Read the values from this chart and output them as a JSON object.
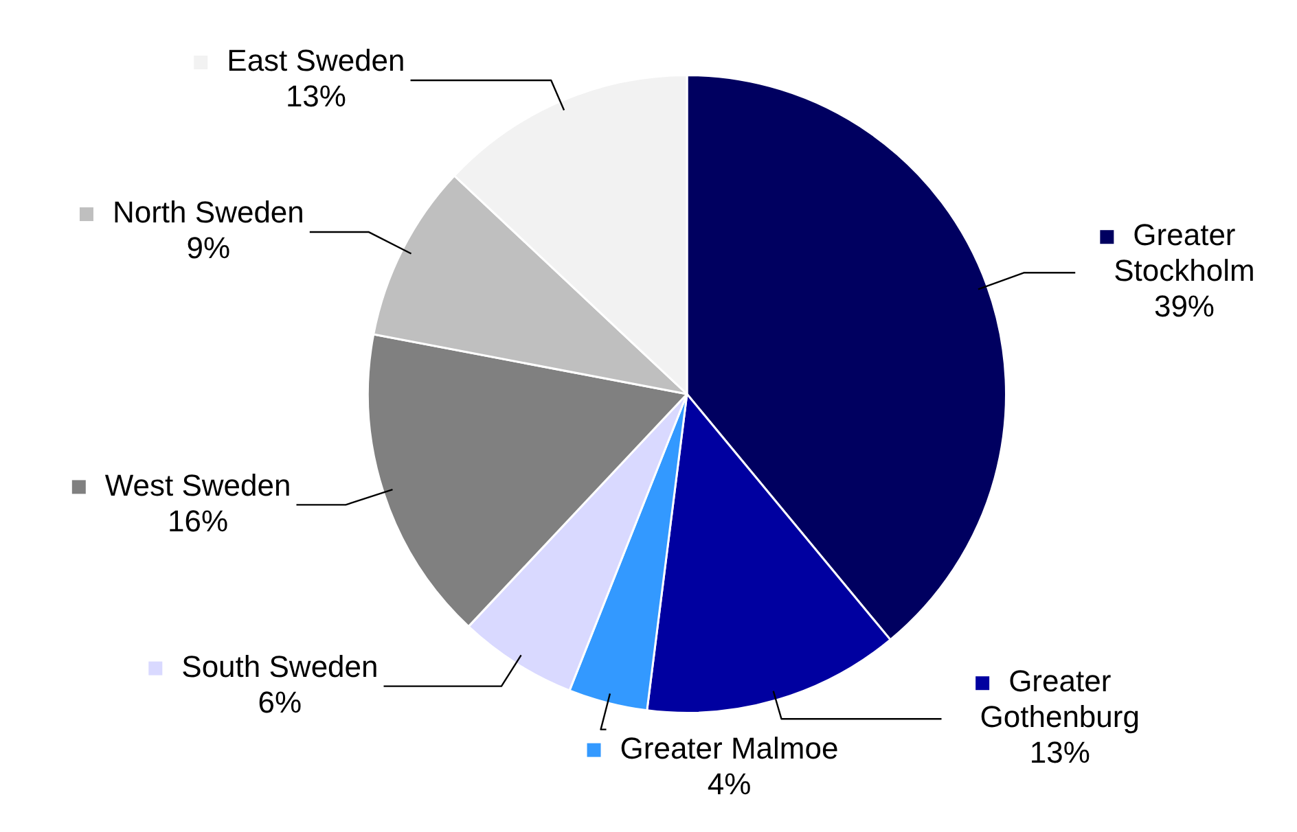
{
  "chart_data": {
    "type": "pie",
    "categories": [
      "Greater Stockholm",
      "Greater Gothenburg",
      "Greater Malmoe",
      "South Sweden",
      "West Sweden",
      "North Sweden",
      "East Sweden"
    ],
    "values": [
      39,
      13,
      4,
      6,
      16,
      9,
      13
    ],
    "colors": [
      "#000060",
      "#0000a0",
      "#3399ff",
      "#d9d9ff",
      "#808080",
      "#bfbfbf",
      "#f2f2f2"
    ],
    "value_labels": [
      "39%",
      "13%",
      "4%",
      "6%",
      "16%",
      "9%",
      "13%"
    ],
    "legend": "right"
  }
}
